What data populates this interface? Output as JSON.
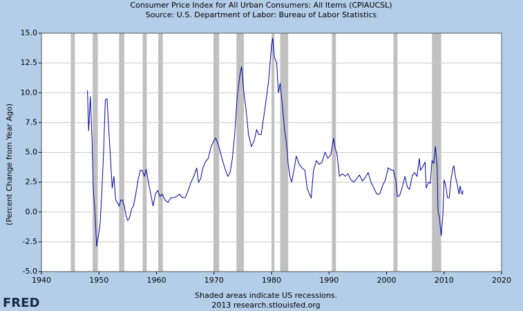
{
  "chart_data": {
    "type": "line",
    "title": "Consumer Price Index for All Urban Consumers: All Items (CPIAUCSL)",
    "subtitle": "Source: U.S. Department of Labor: Bureau of Labor Statistics",
    "y_label": "(Percent Change from Year Ago)",
    "footnote": "Shaded areas indicate US recessions.",
    "source_line": "2013 research.stlouisfed.org",
    "logo": "FRED",
    "xlim": [
      1940,
      2020
    ],
    "xticks": [
      1940,
      1950,
      1960,
      1970,
      1980,
      1990,
      2000,
      2010,
      2020
    ],
    "ylim": [
      -5,
      15
    ],
    "yticks": [
      {
        "value": -5,
        "label": "-5.0"
      },
      {
        "value": -2.5,
        "label": "-2.5"
      },
      {
        "value": 0,
        "label": "0.0"
      },
      {
        "value": 2.5,
        "label": "2.5"
      },
      {
        "value": 5,
        "label": "5.0"
      },
      {
        "value": 7.5,
        "label": "7.5"
      },
      {
        "value": 10,
        "label": "10.0"
      },
      {
        "value": 12.5,
        "label": "12.5"
      },
      {
        "value": 15,
        "label": "15.0"
      }
    ],
    "grid": true,
    "recession_color": "#c0c0c0",
    "recessions": [
      [
        1945.1,
        1945.8
      ],
      [
        1948.9,
        1949.8
      ],
      [
        1953.5,
        1954.4
      ],
      [
        1957.6,
        1958.3
      ],
      [
        1960.3,
        1961.1
      ],
      [
        1969.9,
        1970.9
      ],
      [
        1973.9,
        1975.2
      ],
      [
        1980.0,
        1980.5
      ],
      [
        1981.5,
        1982.9
      ],
      [
        1990.5,
        1991.2
      ],
      [
        2001.2,
        2001.9
      ],
      [
        2007.9,
        2009.5
      ]
    ],
    "series": [
      {
        "name": "CPIAUCSL",
        "color": "#0000a0",
        "x": [
          1948.0,
          1948.2,
          1948.5,
          1948.8,
          1949.0,
          1949.3,
          1949.6,
          1949.9,
          1950.2,
          1950.5,
          1950.8,
          1951.1,
          1951.4,
          1951.7,
          1952.0,
          1952.3,
          1952.6,
          1952.9,
          1953.2,
          1953.5,
          1953.8,
          1954.1,
          1954.4,
          1954.7,
          1955.0,
          1955.3,
          1955.7,
          1956.0,
          1956.4,
          1956.8,
          1957.2,
          1957.5,
          1957.9,
          1958.2,
          1958.6,
          1959.0,
          1959.4,
          1959.8,
          1960.2,
          1960.6,
          1961.0,
          1961.5,
          1962.0,
          1962.5,
          1963.0,
          1963.5,
          1964.0,
          1964.5,
          1965.0,
          1965.5,
          1966.0,
          1966.5,
          1967.0,
          1967.3,
          1967.7,
          1968.0,
          1968.5,
          1969.0,
          1969.5,
          1970.0,
          1970.3,
          1970.7,
          1971.0,
          1971.5,
          1972.0,
          1972.4,
          1972.8,
          1973.2,
          1973.6,
          1974.0,
          1974.5,
          1974.8,
          1975.2,
          1975.6,
          1976.0,
          1976.5,
          1977.0,
          1977.4,
          1977.8,
          1978.2,
          1978.6,
          1979.0,
          1979.5,
          1980.0,
          1980.2,
          1980.5,
          1980.9,
          1981.2,
          1981.5,
          1981.9,
          1982.3,
          1982.6,
          1982.9,
          1983.2,
          1983.5,
          1983.9,
          1984.3,
          1984.8,
          1985.3,
          1985.8,
          1986.2,
          1986.6,
          1986.9,
          1987.3,
          1987.8,
          1988.3,
          1988.8,
          1989.3,
          1989.8,
          1990.3,
          1990.8,
          1991.0,
          1991.4,
          1991.8,
          1992.3,
          1992.8,
          1993.3,
          1993.8,
          1994.3,
          1994.8,
          1995.3,
          1995.8,
          1996.3,
          1996.8,
          1997.3,
          1997.8,
          1998.3,
          1998.8,
          1999.3,
          1999.8,
          2000.3,
          2000.8,
          2001.2,
          2001.6,
          2001.9,
          2002.3,
          2002.8,
          2003.2,
          2003.6,
          2004.0,
          2004.5,
          2004.9,
          2005.3,
          2005.7,
          2005.9,
          2006.3,
          2006.7,
          2006.9,
          2007.3,
          2007.6,
          2007.9,
          2008.2,
          2008.5,
          2008.8,
          2008.95,
          2009.2,
          2009.5,
          2009.8,
          2010.0,
          2010.3,
          2010.6,
          2010.9,
          2011.2,
          2011.5,
          2011.7,
          2012.0,
          2012.3,
          2012.6,
          2012.8,
          2013.0,
          2013.2,
          2013.3
        ],
        "values": [
          10.2,
          6.8,
          9.7,
          6.0,
          2.0,
          0.0,
          -2.9,
          -2.0,
          -1.0,
          1.7,
          5.0,
          9.4,
          9.5,
          7.0,
          4.5,
          2.0,
          3.0,
          1.0,
          0.8,
          0.5,
          1.0,
          1.0,
          0.5,
          -0.3,
          -0.7,
          -0.5,
          0.3,
          0.5,
          1.5,
          2.7,
          3.5,
          3.5,
          3.0,
          3.6,
          2.5,
          1.5,
          0.5,
          1.5,
          1.8,
          1.3,
          1.5,
          1.0,
          0.8,
          1.2,
          1.2,
          1.3,
          1.5,
          1.2,
          1.2,
          1.8,
          2.5,
          3.0,
          3.7,
          2.5,
          2.8,
          3.6,
          4.2,
          4.5,
          5.5,
          6.0,
          6.2,
          5.7,
          5.2,
          4.3,
          3.5,
          3.0,
          3.3,
          4.5,
          6.5,
          9.5,
          11.5,
          12.2,
          10.0,
          8.5,
          6.5,
          5.5,
          6.0,
          6.9,
          6.5,
          6.5,
          7.8,
          9.2,
          11.0,
          14.0,
          14.6,
          13.0,
          12.5,
          10.0,
          10.8,
          8.9,
          6.8,
          5.8,
          4.0,
          3.0,
          2.5,
          3.5,
          4.7,
          4.0,
          3.7,
          3.5,
          2.0,
          1.5,
          1.2,
          3.5,
          4.3,
          4.0,
          4.2,
          5.0,
          4.5,
          4.8,
          6.2,
          5.5,
          4.8,
          3.0,
          3.2,
          3.0,
          3.2,
          2.7,
          2.5,
          2.8,
          3.1,
          2.6,
          2.9,
          3.3,
          2.5,
          2.0,
          1.5,
          1.5,
          2.2,
          2.7,
          3.7,
          3.5,
          3.5,
          2.7,
          1.3,
          1.4,
          2.2,
          3.0,
          2.1,
          1.9,
          3.1,
          3.3,
          3.0,
          4.5,
          3.5,
          3.8,
          4.2,
          2.0,
          2.5,
          2.4,
          4.3,
          4.1,
          5.5,
          3.7,
          0.1,
          -0.5,
          -2.0,
          -0.2,
          2.7,
          2.2,
          1.2,
          1.2,
          2.7,
          3.6,
          3.9,
          2.9,
          2.3,
          1.5,
          2.2,
          1.6,
          1.5,
          1.8
        ]
      }
    ]
  }
}
